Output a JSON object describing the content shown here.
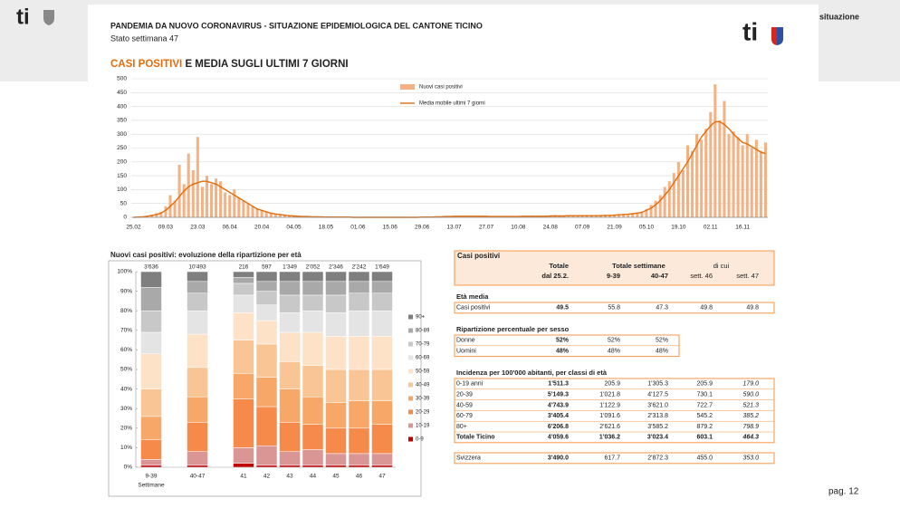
{
  "header": {
    "logo": "ti",
    "slide_logo": "ti",
    "nav_text": "situazione",
    "title": "PANDEMIA DA NUOVO CORONAVIRUS - SITUAZIONE EPIDEMIOLOGICA DEL CANTONE TICINO",
    "subtitle": "Stato settimana 47",
    "section_title_highlight": "CASI POSITIVI",
    "section_title_rest": " E MEDIA SUGLI ULTIMI 7 GIORNI",
    "page": "pag. 12"
  },
  "chart_data": [
    {
      "type": "bar",
      "legend": "top",
      "grid": true,
      "categories": [
        "25.02",
        null,
        null,
        null,
        null,
        null,
        null,
        "09.03",
        null,
        null,
        null,
        null,
        null,
        null,
        "23.03",
        null,
        null,
        null,
        null,
        null,
        null,
        "06.04",
        null,
        null,
        null,
        null,
        null,
        null,
        "20.04",
        null,
        null,
        null,
        null,
        null,
        null,
        "04.05",
        null,
        null,
        null,
        null,
        null,
        null,
        "18.05",
        null,
        null,
        null,
        null,
        null,
        null,
        "01.06",
        null,
        null,
        null,
        null,
        null,
        null,
        "15.06",
        null,
        null,
        null,
        null,
        null,
        null,
        "29.06",
        null,
        null,
        null,
        null,
        null,
        null,
        "13.07",
        null,
        null,
        null,
        null,
        null,
        null,
        "27.07",
        null,
        null,
        null,
        null,
        null,
        null,
        "10.08",
        null,
        null,
        null,
        null,
        null,
        null,
        "24.08",
        null,
        null,
        null,
        null,
        null,
        null,
        "07.09",
        null,
        null,
        null,
        null,
        null,
        null,
        "21.09",
        null,
        null,
        null,
        null,
        null,
        null,
        "05.10",
        null,
        null,
        null,
        null,
        null,
        null,
        "19.10",
        null,
        null,
        null,
        null,
        null,
        null,
        "02.11",
        null,
        null,
        null,
        null,
        null,
        null,
        "16.11",
        null,
        null,
        null,
        null,
        null
      ],
      "series": [
        {
          "name": "Nuovi casi positivi",
          "color": "#f4b183",
          "values": [
            0,
            1,
            2,
            5,
            10,
            15,
            20,
            40,
            80,
            60,
            190,
            120,
            230,
            170,
            290,
            110,
            150,
            120,
            140,
            130,
            90,
            80,
            100,
            70,
            60,
            50,
            40,
            30,
            25,
            20,
            15,
            12,
            10,
            8,
            6,
            5,
            4,
            3,
            3,
            2,
            2,
            2,
            1,
            1,
            1,
            1,
            0,
            1,
            0,
            0,
            1,
            0,
            0,
            1,
            0,
            0,
            0,
            0,
            1,
            0,
            0,
            1,
            0,
            1,
            2,
            1,
            3,
            2,
            4,
            3,
            5,
            3,
            6,
            4,
            5,
            3,
            4,
            3,
            4,
            2,
            3,
            5,
            3,
            2,
            4,
            3,
            5,
            6,
            4,
            5,
            3,
            6,
            8,
            5,
            4,
            7,
            5,
            6,
            5,
            8,
            6,
            4,
            7,
            9,
            6,
            8,
            10,
            12,
            9,
            15,
            18,
            20,
            30,
            45,
            60,
            80,
            110,
            130,
            160,
            200,
            170,
            260,
            240,
            300,
            280,
            320,
            380,
            480,
            350,
            420,
            300,
            310,
            290,
            260,
            300,
            250,
            280,
            240,
            270
          ]
        },
        {
          "name": "Media mobile ultimi 7 giorni",
          "color": "#e46c0a",
          "type": "line",
          "values": [
            0,
            1,
            2,
            4,
            7,
            10,
            15,
            25,
            40,
            55,
            75,
            95,
            110,
            120,
            125,
            130,
            130,
            125,
            120,
            110,
            100,
            90,
            80,
            70,
            60,
            50,
            40,
            30,
            25,
            20,
            15,
            12,
            10,
            8,
            6,
            5,
            4,
            3,
            3,
            2,
            2,
            2,
            1,
            1,
            1,
            1,
            1,
            1,
            0,
            0,
            0,
            0,
            0,
            0,
            0,
            0,
            0,
            0,
            0,
            0,
            0,
            0,
            0,
            1,
            1,
            1,
            2,
            2,
            3,
            3,
            4,
            4,
            4,
            4,
            4,
            4,
            4,
            4,
            3,
            3,
            3,
            3,
            3,
            3,
            3,
            4,
            4,
            4,
            4,
            4,
            4,
            5,
            5,
            5,
            5,
            6,
            6,
            6,
            6,
            6,
            6,
            6,
            6,
            7,
            7,
            8,
            9,
            10,
            11,
            13,
            15,
            18,
            25,
            33,
            45,
            60,
            80,
            100,
            125,
            150,
            175,
            200,
            230,
            260,
            290,
            310,
            330,
            345,
            345,
            335,
            320,
            300,
            285,
            270,
            265,
            255,
            245,
            235,
            230
          ]
        }
      ],
      "ylim": [
        0,
        500
      ],
      "yticks": [
        0,
        50,
        100,
        150,
        200,
        250,
        300,
        350,
        400,
        450,
        500
      ]
    },
    {
      "type": "stacked_bar",
      "title": "Nuovi casi positivi: evoluzione della ripartizione per età",
      "legend": "right",
      "categories": [
        "9-39",
        "40-47",
        "41",
        "42",
        "43",
        "44",
        "45",
        "46",
        "47"
      ],
      "column_labels": [
        "3'636",
        "10'493",
        "216",
        "597",
        "1'349",
        "2'052",
        "2'346",
        "2'242",
        "1'649"
      ],
      "x_label": "Settimane",
      "series": [
        {
          "name": "0-9",
          "color": "#c00000",
          "values": [
            1,
            1,
            2,
            1,
            1,
            1,
            1,
            1,
            1
          ]
        },
        {
          "name": "10-19",
          "color": "#da9694",
          "values": [
            3,
            7,
            8,
            10,
            7,
            8,
            6,
            6,
            6
          ]
        },
        {
          "name": "20-29",
          "color": "#f58a4b",
          "values": [
            10,
            15,
            25,
            20,
            15,
            13,
            13,
            13,
            15
          ]
        },
        {
          "name": "30-39",
          "color": "#f7a869",
          "values": [
            12,
            13,
            13,
            15,
            17,
            14,
            13,
            14,
            12
          ]
        },
        {
          "name": "40-49",
          "color": "#f9c594",
          "values": [
            14,
            15,
            17,
            17,
            14,
            16,
            17,
            16,
            16
          ]
        },
        {
          "name": "50-59",
          "color": "#fde2c8",
          "values": [
            18,
            17,
            14,
            12,
            15,
            17,
            17,
            17,
            17
          ]
        },
        {
          "name": "60-69",
          "color": "#e4e4e4",
          "values": [
            11,
            12,
            9,
            8,
            10,
            11,
            12,
            13,
            13
          ]
        },
        {
          "name": "70-79",
          "color": "#c8c8c8",
          "values": [
            11,
            9,
            6,
            7,
            9,
            8,
            9,
            9,
            9
          ]
        },
        {
          "name": "80-89",
          "color": "#a9a9a9",
          "values": [
            12,
            6,
            3,
            5,
            7,
            7,
            7,
            6,
            6
          ]
        },
        {
          "name": "90+",
          "color": "#7f7f7f",
          "values": [
            8,
            5,
            3,
            5,
            5,
            5,
            5,
            5,
            5
          ]
        }
      ],
      "ylim": [
        0,
        100
      ],
      "yticks": [
        {
          "value": 0,
          "label": "0%"
        },
        {
          "value": 10,
          "label": "10%"
        },
        {
          "value": 20,
          "label": "20%"
        },
        {
          "value": 30,
          "label": "30%"
        },
        {
          "value": 40,
          "label": "40%"
        },
        {
          "value": 50,
          "label": "50%"
        },
        {
          "value": 60,
          "label": "60%"
        },
        {
          "value": 70,
          "label": "70%"
        },
        {
          "value": 80,
          "label": "80%"
        },
        {
          "value": 90,
          "label": "90%"
        },
        {
          "value": 100,
          "label": "100%"
        }
      ]
    }
  ],
  "table": {
    "title": "Casi positivi",
    "header_top": [
      "Totale",
      "Totale settimane",
      "di cui"
    ],
    "header_bottom": [
      "dal 25.2.",
      "9-39",
      "40-47",
      "sett. 46",
      "sett. 47"
    ],
    "sections": [
      {
        "title": "Età media",
        "rows": [
          [
            "Casi positivi",
            "49.5",
            "55.8",
            "47.3",
            "49.8",
            "49.8"
          ]
        ]
      },
      {
        "title": "Ripartizione percentuale per sesso",
        "rows": [
          [
            "Donne",
            "52%",
            "52%",
            "52%"
          ],
          [
            "Uomini",
            "48%",
            "48%",
            "48%"
          ]
        ]
      },
      {
        "title": "Incidenza per 100'000 abitanti, per classi di età",
        "rows": [
          [
            "0-19 anni",
            "1'511.3",
            "205.9",
            "1'305.3",
            "205.9",
            "179.0"
          ],
          [
            "20-39",
            "5'149.3",
            "1'021.8",
            "4'127.5",
            "730.1",
            "590.0"
          ],
          [
            "40-59",
            "4'743.9",
            "1'122.9",
            "3'621.0",
            "722.7",
            "521.3"
          ],
          [
            "60-79",
            "3'405.4",
            "1'091.6",
            "2'313.8",
            "545.2",
            "385.2"
          ],
          [
            "80+",
            "6'206.8",
            "2'621.6",
            "3'585.2",
            "879.2",
            "798.9"
          ],
          [
            "Totale Ticino",
            "4'059.6",
            "1'036.2",
            "3'023.4",
            "603.1",
            "464.3"
          ]
        ]
      },
      {
        "rows": [
          [
            "Svizzera",
            "3'490.0",
            "617.7",
            "2'872.3",
            "455.0",
            "353.0"
          ]
        ]
      }
    ]
  }
}
